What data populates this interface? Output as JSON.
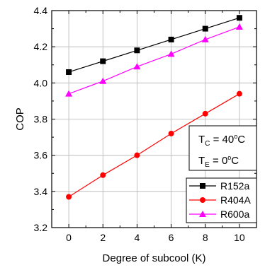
{
  "chart_data": {
    "type": "line",
    "xlabel": "Degree of subcool (K)",
    "ylabel": "COP",
    "xlim": [
      -1,
      11
    ],
    "ylim": [
      3.2,
      4.4
    ],
    "x_ticks": [
      0,
      2,
      4,
      6,
      8,
      10
    ],
    "x_tick_labels": [
      "0",
      "2",
      "4",
      "6",
      "8",
      "10"
    ],
    "y_ticks": [
      3.2,
      3.4,
      3.6,
      3.8,
      4.0,
      4.2,
      4.4
    ],
    "y_tick_labels": [
      "3.2",
      "3.4",
      "3.6",
      "3.8",
      "4.0",
      "4.2",
      "4.4"
    ],
    "grid": true,
    "legend_position": "bottom-right",
    "x": [
      0,
      2,
      4,
      6,
      8,
      10
    ],
    "series": [
      {
        "name": "R152a",
        "color": "#000000",
        "marker": "square",
        "values": [
          4.06,
          4.12,
          4.18,
          4.24,
          4.3,
          4.36
        ]
      },
      {
        "name": "R404A",
        "color": "#ff0000",
        "marker": "circle",
        "values": [
          3.37,
          3.49,
          3.6,
          3.72,
          3.83,
          3.94
        ]
      },
      {
        "name": "R600a",
        "color": "#ff00ff",
        "marker": "triangle",
        "values": [
          3.94,
          4.01,
          4.09,
          4.16,
          4.24,
          4.31
        ]
      }
    ],
    "annotations": {
      "tc": {
        "base": "T",
        "sub": "C",
        "eq": " = 40",
        "deg": "o",
        "unit": "C"
      },
      "te": {
        "base": "T",
        "sub": "E",
        "eq": " = 0",
        "deg": "o",
        "unit": "C"
      }
    }
  }
}
